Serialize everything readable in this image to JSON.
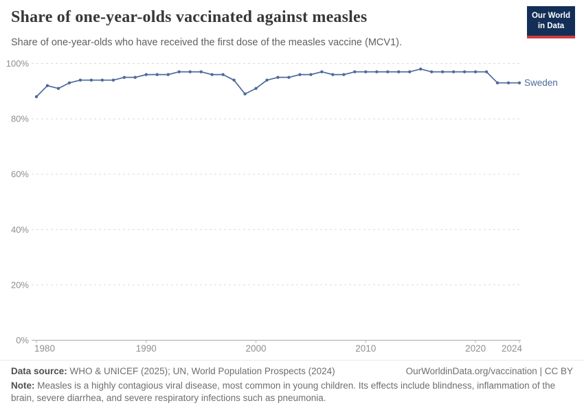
{
  "header": {
    "title": "Share of one-year-olds vaccinated against measles",
    "subtitle": "Share of one-year-olds who have received the first dose of the measles vaccine (MCV1)."
  },
  "logo": {
    "line1": "Our World",
    "line2": "in Data"
  },
  "chart_data": {
    "type": "line",
    "title": "Share of one-year-olds vaccinated against measles",
    "xlabel": "",
    "ylabel": "",
    "unit": "%",
    "xlim": [
      1980,
      2024
    ],
    "ylim": [
      0,
      100
    ],
    "grid": "horizontal-dashed",
    "legend_position": "end-of-line-label",
    "x_ticks": [
      1980,
      1990,
      2000,
      2010,
      2020,
      2024
    ],
    "x_tick_labels": [
      "1980",
      "1990",
      "2000",
      "2010",
      "2020",
      "2024"
    ],
    "y_ticks": [
      0,
      20,
      40,
      60,
      80,
      100
    ],
    "y_tick_labels": [
      "0%",
      "20%",
      "40%",
      "60%",
      "80%",
      "100%"
    ],
    "series": [
      {
        "name": "Sweden",
        "color": "#4C6A9C",
        "x": [
          1980,
          1981,
          1982,
          1983,
          1984,
          1985,
          1986,
          1987,
          1988,
          1989,
          1990,
          1991,
          1992,
          1993,
          1994,
          1995,
          1996,
          1997,
          1998,
          1999,
          2000,
          2001,
          2002,
          2003,
          2004,
          2005,
          2006,
          2007,
          2008,
          2009,
          2010,
          2011,
          2012,
          2013,
          2014,
          2015,
          2016,
          2017,
          2018,
          2019,
          2020,
          2021,
          2022,
          2023,
          2024
        ],
        "values": [
          88,
          92,
          91,
          93,
          94,
          94,
          94,
          94,
          95,
          95,
          96,
          96,
          96,
          97,
          97,
          97,
          96,
          96,
          94,
          89,
          91,
          94,
          95,
          95,
          96,
          96,
          97,
          96,
          96,
          97,
          97,
          97,
          97,
          97,
          97,
          98,
          97,
          97,
          97,
          97,
          97,
          97,
          93,
          93,
          93
        ]
      }
    ]
  },
  "footer": {
    "datasource_label": "Data source:",
    "datasource": "WHO & UNICEF (2025); UN, World Population Prospects (2024)",
    "link": "OurWorldinData.org/vaccination | CC BY",
    "note_label": "Note:",
    "note": "Measles is a highly contagious viral disease, most common in young children. Its effects include blindness, inflammation of the brain, severe diarrhea, and severe respiratory infections such as pneumonia."
  },
  "colors": {
    "accent": "#4C6A9C",
    "logo_bg": "#132F57",
    "logo_bar": "#D13B42",
    "grid": "#DBDBDB",
    "axis": "#A8A8A8",
    "tick": "#B3B3B3",
    "tick_label": "#8E8E8E"
  }
}
